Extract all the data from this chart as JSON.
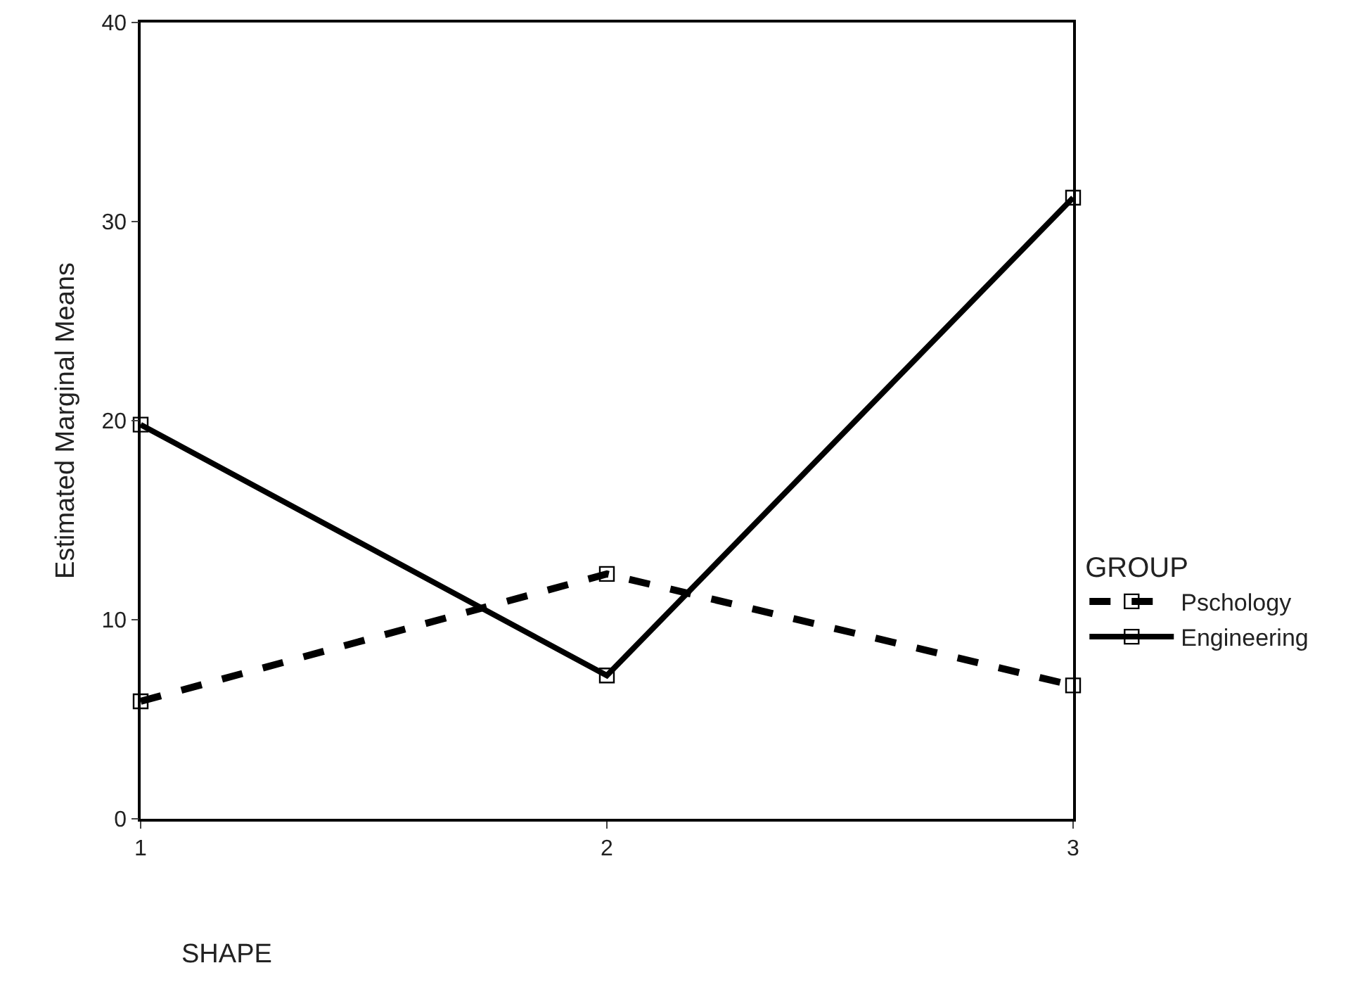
{
  "chart_data": {
    "type": "line",
    "xlabel": "SHAPE",
    "ylabel": "Estimated Marginal Means",
    "legend_title": "GROUP",
    "x": [
      1,
      2,
      3
    ],
    "xlim": [
      1,
      3
    ],
    "xticks": [
      1,
      2,
      3
    ],
    "ylim": [
      0,
      40
    ],
    "yticks": [
      0,
      10,
      20,
      30,
      40
    ],
    "series": [
      {
        "name": "Pschology",
        "color": "#000000",
        "line_style": "dashed",
        "values": [
          5.9,
          12.3,
          6.7
        ]
      },
      {
        "name": "Engineering",
        "color": "#000000",
        "line_style": "solid",
        "values": [
          19.8,
          7.2,
          31.2
        ]
      }
    ],
    "marker": "square",
    "grid": false,
    "legend": "right"
  }
}
